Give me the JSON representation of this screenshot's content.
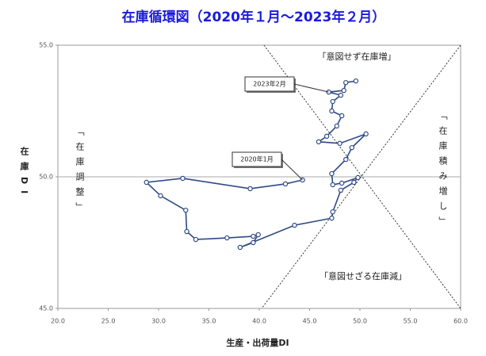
{
  "chart_data": {
    "type": "line",
    "title": "在庫循環図（2020年１月～2023年２月）",
    "x_label": "生産・出荷量DI",
    "y_label": "在庫DI",
    "x": [
      44.3,
      42.6,
      39.1,
      32.4,
      28.8,
      30.2,
      32.7,
      32.8,
      33.7,
      36.8,
      39.4,
      39.9,
      39.4,
      38.1,
      43.5,
      47.2,
      47.3,
      48.1,
      49.4,
      49.8,
      48.2,
      47.3,
      47.2,
      48.6,
      49.2,
      50.6,
      48.0,
      45.9,
      46.7,
      47.7,
      48.2,
      47.2,
      47.3,
      48.1,
      46.9,
      48.4,
      48.6,
      49.6
    ],
    "values": [
      49.88,
      49.73,
      49.55,
      49.94,
      49.79,
      49.28,
      48.73,
      47.92,
      47.62,
      47.68,
      47.74,
      47.8,
      47.5,
      47.32,
      48.16,
      48.43,
      48.67,
      49.49,
      49.79,
      49.97,
      49.76,
      49.7,
      50.12,
      50.66,
      51.11,
      51.63,
      51.27,
      51.33,
      51.54,
      51.93,
      52.32,
      52.5,
      52.86,
      53.1,
      53.22,
      53.28,
      53.58,
      53.64
    ],
    "color": "#2e4a86",
    "xlim": [
      20,
      60
    ],
    "ylim": [
      45,
      55
    ],
    "xticks": [
      {
        "value": 20,
        "label": "20.0"
      },
      {
        "value": 25,
        "label": "25.0"
      },
      {
        "value": 30,
        "label": "30.0"
      },
      {
        "value": 35,
        "label": "35.0"
      },
      {
        "value": 40,
        "label": "40.0"
      },
      {
        "value": 45,
        "label": "45.0"
      },
      {
        "value": 50,
        "label": "50.0"
      },
      {
        "value": 55,
        "label": "55.0"
      },
      {
        "value": 60,
        "label": "60.0"
      }
    ],
    "yticks": [
      {
        "value": 45,
        "label": "45.0"
      },
      {
        "value": 50,
        "label": "50.0"
      },
      {
        "value": 55,
        "label": "55.0"
      }
    ],
    "callouts": [
      "2020年1月",
      "2023年2月"
    ],
    "quadrant_labels": [
      "「意図せず在庫増」",
      "「在庫積み増し」",
      "「意図せざる在庫減」",
      "「在庫調整」"
    ]
  }
}
